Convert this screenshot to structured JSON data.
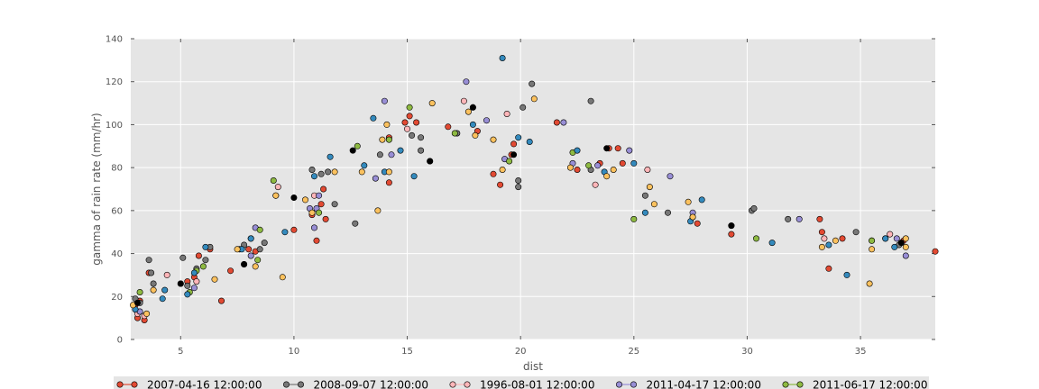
{
  "chart_data": {
    "type": "scatter",
    "title": "",
    "xlabel": "dist",
    "ylabel": "gamma of rain rate (mm/hr)",
    "xlim": [
      2.8,
      38.3
    ],
    "ylim": [
      0,
      140
    ],
    "xticks": [
      5,
      10,
      15,
      20,
      25,
      30,
      35
    ],
    "yticks": [
      0,
      20,
      40,
      60,
      80,
      100,
      120,
      140
    ],
    "grid": true,
    "legend_position": "bottom",
    "series": [
      {
        "name": "2007-04-16 12:00:00",
        "color": "#E24A33",
        "points": [
          [
            3.0,
            16
          ],
          [
            3.1,
            10
          ],
          [
            3.2,
            18
          ],
          [
            3.4,
            9
          ],
          [
            3.6,
            31
          ],
          [
            5.0,
            26
          ],
          [
            5.3,
            27
          ],
          [
            5.6,
            29
          ],
          [
            5.8,
            39
          ],
          [
            6.3,
            42
          ],
          [
            6.8,
            18
          ],
          [
            7.2,
            32
          ],
          [
            7.8,
            35
          ],
          [
            8.0,
            42
          ],
          [
            8.3,
            41
          ],
          [
            10.0,
            51
          ],
          [
            10.8,
            58
          ],
          [
            11.0,
            46
          ],
          [
            11.2,
            63
          ],
          [
            11.3,
            70
          ],
          [
            11.4,
            56
          ],
          [
            14.2,
            94
          ],
          [
            14.2,
            73
          ],
          [
            14.9,
            101
          ],
          [
            15.1,
            104
          ],
          [
            15.4,
            101
          ],
          [
            16.0,
            83
          ],
          [
            16.8,
            99
          ],
          [
            18.1,
            97
          ],
          [
            18.8,
            77
          ],
          [
            19.1,
            72
          ],
          [
            19.6,
            86
          ],
          [
            19.7,
            91
          ],
          [
            21.6,
            101
          ],
          [
            22.5,
            79
          ],
          [
            23.5,
            82
          ],
          [
            23.9,
            89
          ],
          [
            24.3,
            89
          ],
          [
            24.5,
            82
          ],
          [
            27.8,
            54
          ],
          [
            29.3,
            53
          ],
          [
            29.3,
            49
          ],
          [
            33.2,
            56
          ],
          [
            33.3,
            50
          ],
          [
            33.6,
            33
          ],
          [
            34.2,
            47
          ],
          [
            36.9,
            46
          ],
          [
            38.3,
            41
          ]
        ]
      },
      {
        "name": "2008-09-07 12:00:00",
        "color": "#777777",
        "points": [
          [
            3.0,
            19
          ],
          [
            3.2,
            17
          ],
          [
            3.6,
            37
          ],
          [
            3.7,
            31
          ],
          [
            3.8,
            26
          ],
          [
            5.1,
            38
          ],
          [
            5.3,
            25
          ],
          [
            5.7,
            33
          ],
          [
            6.1,
            37
          ],
          [
            6.3,
            43
          ],
          [
            7.6,
            42
          ],
          [
            7.8,
            44
          ],
          [
            8.5,
            42
          ],
          [
            8.7,
            45
          ],
          [
            9.2,
            67
          ],
          [
            10.8,
            79
          ],
          [
            11.2,
            77
          ],
          [
            11.5,
            78
          ],
          [
            11.8,
            63
          ],
          [
            12.7,
            54
          ],
          [
            13.8,
            86
          ],
          [
            15.2,
            95
          ],
          [
            15.6,
            88
          ],
          [
            15.6,
            94
          ],
          [
            17.2,
            96
          ],
          [
            19.9,
            71
          ],
          [
            19.9,
            74
          ],
          [
            20.1,
            108
          ],
          [
            20.5,
            119
          ],
          [
            23.1,
            111
          ],
          [
            23.1,
            79
          ],
          [
            25.5,
            67
          ],
          [
            26.5,
            59
          ],
          [
            30.2,
            60
          ],
          [
            30.3,
            61
          ],
          [
            31.8,
            56
          ],
          [
            34.8,
            50
          ],
          [
            35.5,
            46
          ],
          [
            36.1,
            47
          ],
          [
            36.7,
            44
          ]
        ]
      },
      {
        "name": "1996-08-01 12:00:00",
        "color": "#FFB5B8",
        "points": [
          [
            3.1,
            12
          ],
          [
            3.4,
            11
          ],
          [
            4.4,
            30
          ],
          [
            5.7,
            27
          ],
          [
            8.1,
            47
          ],
          [
            9.3,
            71
          ],
          [
            10.9,
            67
          ],
          [
            15.0,
            98
          ],
          [
            17.5,
            111
          ],
          [
            19.4,
            105
          ],
          [
            23.3,
            72
          ],
          [
            25.6,
            79
          ],
          [
            27.6,
            57
          ],
          [
            33.4,
            47
          ],
          [
            36.3,
            49
          ]
        ]
      },
      {
        "name": "2011-04-17 12:00:00",
        "color": "#988ED5",
        "points": [
          [
            3.2,
            13
          ],
          [
            5.6,
            24
          ],
          [
            8.1,
            39
          ],
          [
            8.3,
            52
          ],
          [
            10.7,
            61
          ],
          [
            10.9,
            52
          ],
          [
            11.0,
            61
          ],
          [
            11.1,
            67
          ],
          [
            13.6,
            75
          ],
          [
            14.0,
            111
          ],
          [
            14.3,
            86
          ],
          [
            17.6,
            120
          ],
          [
            18.5,
            102
          ],
          [
            19.3,
            84
          ],
          [
            21.9,
            101
          ],
          [
            22.3,
            82
          ],
          [
            23.4,
            81
          ],
          [
            24.8,
            88
          ],
          [
            26.6,
            76
          ],
          [
            27.6,
            59
          ],
          [
            32.3,
            56
          ],
          [
            36.6,
            47
          ],
          [
            37.0,
            39
          ]
        ]
      },
      {
        "name": "2011-06-17 12:00:00",
        "color": "#8EBA42",
        "points": [
          [
            3.2,
            22
          ],
          [
            5.4,
            22
          ],
          [
            5.7,
            32
          ],
          [
            6.0,
            34
          ],
          [
            8.4,
            37
          ],
          [
            8.5,
            51
          ],
          [
            9.1,
            74
          ],
          [
            11.1,
            59
          ],
          [
            12.8,
            90
          ],
          [
            14.2,
            93
          ],
          [
            15.1,
            108
          ],
          [
            17.1,
            96
          ],
          [
            19.5,
            83
          ],
          [
            22.3,
            87
          ],
          [
            23.0,
            81
          ],
          [
            25.0,
            56
          ],
          [
            30.4,
            47
          ],
          [
            35.5,
            46
          ]
        ]
      },
      {
        "name": "",
        "color": "#348ABD",
        "points": [
          [
            3.0,
            14
          ],
          [
            4.2,
            19
          ],
          [
            4.3,
            23
          ],
          [
            5.3,
            21
          ],
          [
            5.6,
            31
          ],
          [
            6.1,
            43
          ],
          [
            7.7,
            42
          ],
          [
            8.1,
            47
          ],
          [
            9.6,
            50
          ],
          [
            10.9,
            76
          ],
          [
            11.6,
            85
          ],
          [
            13.1,
            81
          ],
          [
            13.5,
            103
          ],
          [
            14.0,
            78
          ],
          [
            14.7,
            88
          ],
          [
            15.3,
            76
          ],
          [
            17.9,
            100
          ],
          [
            19.2,
            131
          ],
          [
            19.9,
            94
          ],
          [
            20.4,
            92
          ],
          [
            22.5,
            88
          ],
          [
            23.7,
            78
          ],
          [
            25.0,
            82
          ],
          [
            25.5,
            59
          ],
          [
            27.5,
            55
          ],
          [
            28.0,
            65
          ],
          [
            31.1,
            45
          ],
          [
            33.6,
            44
          ],
          [
            34.4,
            30
          ],
          [
            36.1,
            47
          ],
          [
            36.5,
            43
          ]
        ]
      },
      {
        "name": "",
        "color": "#FBC15E",
        "points": [
          [
            2.9,
            16
          ],
          [
            3.5,
            12
          ],
          [
            3.8,
            23
          ],
          [
            6.5,
            28
          ],
          [
            7.5,
            42
          ],
          [
            8.3,
            34
          ],
          [
            9.2,
            67
          ],
          [
            9.5,
            29
          ],
          [
            10.5,
            65
          ],
          [
            10.8,
            59
          ],
          [
            11.8,
            78
          ],
          [
            13.0,
            78
          ],
          [
            13.7,
            60
          ],
          [
            13.9,
            93
          ],
          [
            14.1,
            100
          ],
          [
            14.2,
            78
          ],
          [
            16.1,
            110
          ],
          [
            17.7,
            106
          ],
          [
            17.9,
            108
          ],
          [
            18.0,
            95
          ],
          [
            18.8,
            93
          ],
          [
            19.2,
            79
          ],
          [
            20.6,
            112
          ],
          [
            22.2,
            80
          ],
          [
            23.8,
            76
          ],
          [
            24.1,
            79
          ],
          [
            25.7,
            71
          ],
          [
            25.9,
            63
          ],
          [
            27.4,
            64
          ],
          [
            27.6,
            57
          ],
          [
            33.3,
            43
          ],
          [
            33.9,
            46
          ],
          [
            35.4,
            26
          ],
          [
            35.5,
            42
          ],
          [
            37.0,
            43
          ],
          [
            37.0,
            47
          ]
        ]
      },
      {
        "name": "",
        "color": "#000000",
        "points": [
          [
            3.1,
            17
          ],
          [
            5.0,
            26
          ],
          [
            7.8,
            35
          ],
          [
            10.0,
            66
          ],
          [
            12.6,
            88
          ],
          [
            16.0,
            83
          ],
          [
            17.9,
            108
          ],
          [
            19.7,
            86
          ],
          [
            23.8,
            89
          ],
          [
            29.3,
            53
          ],
          [
            36.8,
            45
          ]
        ]
      }
    ],
    "legend": [
      {
        "label": "2007-04-16 12:00:00",
        "color": "#E24A33"
      },
      {
        "label": "2008-09-07 12:00:00",
        "color": "#777777"
      },
      {
        "label": "1996-08-01 12:00:00",
        "color": "#FFB5B8"
      },
      {
        "label": "2011-04-17 12:00:00",
        "color": "#988ED5"
      },
      {
        "label": "2011-06-17 12:00:00",
        "color": "#8EBA42"
      }
    ]
  }
}
